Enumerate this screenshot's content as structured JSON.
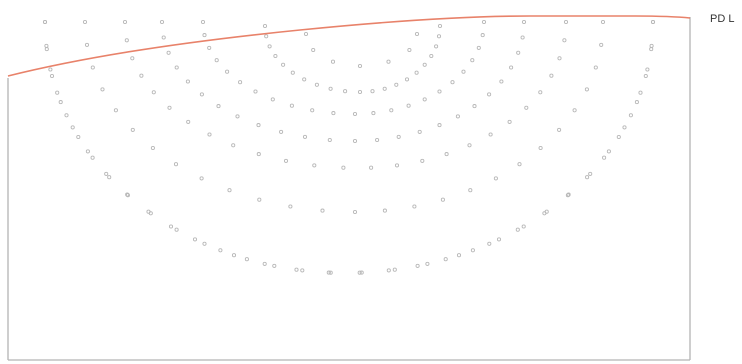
{
  "label": "PD L",
  "colors": {
    "boundary": "#e8826a",
    "dots": "#b8b8b8",
    "frame": "#b4b4b4",
    "label": "#333333"
  },
  "arcs": [
    {
      "count": 7
    },
    {
      "count": 21
    },
    {
      "count": 23
    },
    {
      "count": 25
    },
    {
      "count": 26
    },
    {
      "count": 27
    },
    {
      "count": 30
    },
    {
      "count": 34
    }
  ]
}
